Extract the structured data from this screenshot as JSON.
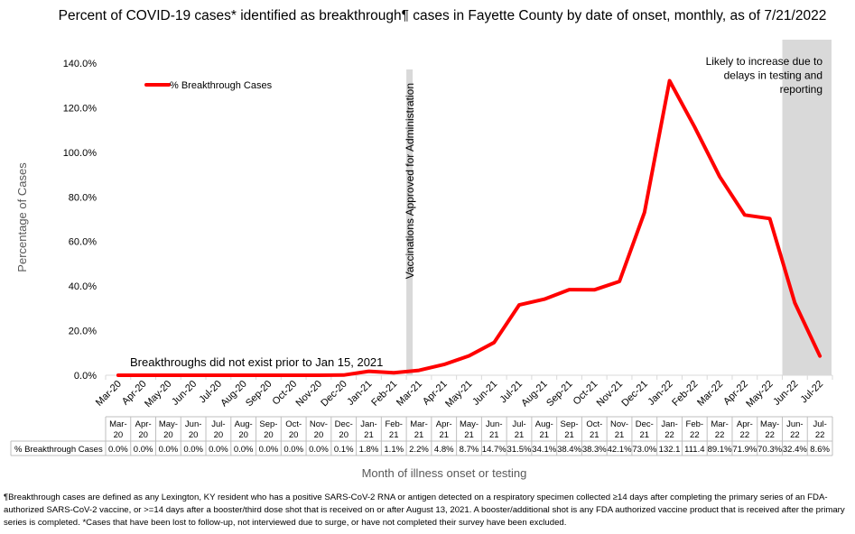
{
  "title": "Percent of COVID-19 cases* identified as breakthrough¶ cases in Fayette County by date of onset, monthly, as of 7/21/2022",
  "footnote": "¶Breakthrough cases are defined as any Lexington, KY resident who has a positive SARS-CoV-2 RNA or antigen detected on a respiratory specimen collected ≥14 days after completing the primary series of an FDA-authorized SARS-CoV-2 vaccine, or >=14 days after a booster/third dose shot that is received on or after August 13, 2021.  A booster/additional shot is any FDA authorized vaccine product that is received after the primary series is completed. *Cases that have been lost to follow-up, not interviewed due to surge, or have not completed their survey have been excluded.",
  "chart_data": {
    "type": "line",
    "title": "Percent of COVID-19 cases* identified as breakthrough¶ cases in Fayette County by date of onset, monthly, as of 7/21/2022",
    "xlabel": "Month of illness onset or testing",
    "ylabel": "Percentage of Cases",
    "ylim": [
      0,
      140
    ],
    "yticks": [
      "0.0%",
      "20.0%",
      "40.0%",
      "60.0%",
      "80.0%",
      "100.0%",
      "120.0%",
      "140.0%"
    ],
    "grid": false,
    "legend_position": "top-left",
    "categories": [
      "Mar-20",
      "Apr-20",
      "May-20",
      "Jun-20",
      "Jul-20",
      "Aug-20",
      "Sep-20",
      "Oct-20",
      "Nov-20",
      "Dec-20",
      "Jan-21",
      "Feb-21",
      "Mar-21",
      "Apr-21",
      "May-21",
      "Jun-21",
      "Jul-21",
      "Aug-21",
      "Sep-21",
      "Oct-21",
      "Nov-21",
      "Dec-21",
      "Jan-22",
      "Feb-22",
      "Mar-22",
      "Apr-22",
      "May-22",
      "Jun-22",
      "Jul-22"
    ],
    "table_categories": [
      [
        "Mar-",
        "20"
      ],
      [
        "Apr-",
        "20"
      ],
      [
        "May-",
        "20"
      ],
      [
        "Jun-",
        "20"
      ],
      [
        "Jul-",
        "20"
      ],
      [
        "Aug-",
        "20"
      ],
      [
        "Sep-",
        "20"
      ],
      [
        "Oct-",
        "20"
      ],
      [
        "Nov-",
        "20"
      ],
      [
        "Dec-",
        "20"
      ],
      [
        "Jan-",
        "21"
      ],
      [
        "Feb-",
        "21"
      ],
      [
        "Mar-",
        "21"
      ],
      [
        "Apr-",
        "21"
      ],
      [
        "May-",
        "21"
      ],
      [
        "Jun-",
        "21"
      ],
      [
        "Jul-",
        "21"
      ],
      [
        "Aug-",
        "21"
      ],
      [
        "Sep-",
        "21"
      ],
      [
        "Oct-",
        "21"
      ],
      [
        "Nov-",
        "21"
      ],
      [
        "Dec-",
        "21"
      ],
      [
        "Jan-",
        "22"
      ],
      [
        "Feb-",
        "22"
      ],
      [
        "Mar-",
        "22"
      ],
      [
        "Apr-",
        "22"
      ],
      [
        "May-",
        "22"
      ],
      [
        "Jun-",
        "22"
      ],
      [
        "Jul-",
        "22"
      ]
    ],
    "series": [
      {
        "name": "% Breakthrough Cases",
        "color": "#ff0000",
        "values": [
          0.0,
          0.0,
          0.0,
          0.0,
          0.0,
          0.0,
          0.0,
          0.0,
          0.0,
          0.1,
          1.8,
          1.1,
          2.2,
          4.8,
          8.7,
          14.7,
          31.5,
          34.1,
          38.4,
          38.3,
          42.1,
          73.0,
          132.1,
          111.4,
          89.1,
          71.9,
          70.3,
          32.4,
          8.6
        ],
        "labels": [
          "0.0%",
          "0.0%",
          "0.0%",
          "0.0%",
          "0.0%",
          "0.0%",
          "0.0%",
          "0.0%",
          "0.0%",
          "0.1%",
          "1.8%",
          "1.1%",
          "2.2%",
          "4.8%",
          "8.7%",
          "14.7%",
          "31.5%",
          "34.1%",
          "38.4%",
          "38.3%",
          "42.1%",
          "73.0%",
          "132.1",
          "111.4",
          "89.1%",
          "71.9%",
          "70.3%",
          "32.4%",
          "8.6%"
        ]
      }
    ],
    "annotations": {
      "vaccination_line": {
        "category": "Feb-21",
        "text": "Vaccinations Approved for Administration",
        "color": "#d9d9d9"
      },
      "delay_region": {
        "categories": [
          "Jun-22",
          "Jul-22"
        ],
        "lines": [
          "Likely to increase due to",
          "delays in testing and",
          "reporting"
        ],
        "color": "#d9d9d9"
      },
      "breakthrough_note": "Breakthroughs did not exist prior to Jan 15, 2021"
    }
  }
}
